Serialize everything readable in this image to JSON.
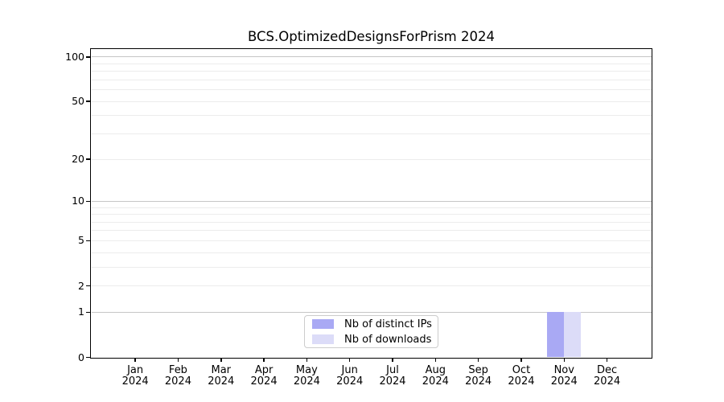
{
  "title": "BCS.OptimizedDesignsForPrism 2024",
  "chart_data": {
    "type": "bar",
    "title": "BCS.OptimizedDesignsForPrism 2024",
    "categories": [
      {
        "month": "Jan",
        "year": "2024"
      },
      {
        "month": "Feb",
        "year": "2024"
      },
      {
        "month": "Mar",
        "year": "2024"
      },
      {
        "month": "Apr",
        "year": "2024"
      },
      {
        "month": "May",
        "year": "2024"
      },
      {
        "month": "Jun",
        "year": "2024"
      },
      {
        "month": "Jul",
        "year": "2024"
      },
      {
        "month": "Aug",
        "year": "2024"
      },
      {
        "month": "Sep",
        "year": "2024"
      },
      {
        "month": "Oct",
        "year": "2024"
      },
      {
        "month": "Nov",
        "year": "2024"
      },
      {
        "month": "Dec",
        "year": "2024"
      }
    ],
    "series": [
      {
        "name": "Nb of distinct IPs",
        "color": "#a9a9f4",
        "values": [
          0,
          0,
          0,
          0,
          0,
          0,
          0,
          0,
          0,
          0,
          1,
          0
        ]
      },
      {
        "name": "Nb of downloads",
        "color": "#dcdcf8",
        "values": [
          0,
          0,
          0,
          0,
          0,
          0,
          0,
          0,
          0,
          0,
          1,
          0
        ]
      }
    ],
    "y_axis": {
      "scale": "log1p",
      "ylim": [
        0,
        112.4
      ],
      "ticks": [
        {
          "value": 0,
          "label": "0"
        },
        {
          "value": 1,
          "label": "1"
        },
        {
          "value": 2,
          "label": "2"
        },
        {
          "value": 5,
          "label": "5"
        },
        {
          "value": 10,
          "label": "10"
        },
        {
          "value": 20,
          "label": "20"
        },
        {
          "value": 50,
          "label": "50"
        },
        {
          "value": 100,
          "label": "100"
        }
      ],
      "major_gridlines": [
        1,
        10,
        100
      ],
      "minor_gridlines": [
        2,
        3,
        4,
        5,
        6,
        7,
        8,
        9,
        20,
        30,
        40,
        50,
        60,
        70,
        80,
        90
      ]
    },
    "legend": {
      "position": "bottom-center"
    },
    "colors": {
      "spine": "#000000",
      "major_grid": "#c6c6c6",
      "minor_grid": "#ececec",
      "legend_border": "#cccccc",
      "background": "#ffffff"
    }
  }
}
